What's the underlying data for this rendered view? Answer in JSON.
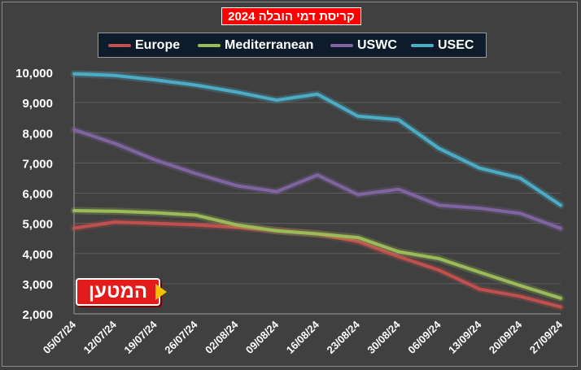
{
  "title": "קריסת דמי הובלה 2024",
  "logo_text": "המטען",
  "colors": {
    "background": "#404040",
    "Europe": "#c0504d",
    "Mediterranean": "#9bbb59",
    "USWC": "#8064a2",
    "USEC": "#4bacc6"
  },
  "chart_data": {
    "type": "line",
    "title": "קריסת דמי הובלה 2024",
    "xlabel": "",
    "ylabel": "",
    "ylim": [
      2000,
      10000
    ],
    "yticks": [
      "2,000",
      "3,000",
      "4,000",
      "5,000",
      "6,000",
      "7,000",
      "8,000",
      "9,000",
      "10,000"
    ],
    "categories": [
      "05/07/24",
      "12/07/24",
      "19/07/24",
      "26/07/24",
      "02/08/24",
      "09/08/24",
      "16/08/24",
      "23/08/24",
      "30/08/24",
      "06/09/24",
      "13/09/24",
      "20/09/24",
      "27/09/24"
    ],
    "grid": true,
    "legend_position": "top",
    "series": [
      {
        "name": "Europe",
        "values": [
          4840,
          5040,
          5000,
          4950,
          4870,
          4760,
          4650,
          4400,
          3900,
          3450,
          2820,
          2580,
          2230
        ]
      },
      {
        "name": "Mediterranean",
        "values": [
          5420,
          5400,
          5350,
          5270,
          4950,
          4750,
          4650,
          4530,
          4060,
          3830,
          3380,
          2940,
          2520
        ]
      },
      {
        "name": "USWC",
        "values": [
          8100,
          7650,
          7100,
          6650,
          6250,
          6050,
          6600,
          5950,
          6130,
          5600,
          5500,
          5330,
          4830
        ]
      },
      {
        "name": "USEC",
        "values": [
          9950,
          9900,
          9750,
          9580,
          9350,
          9080,
          9280,
          8550,
          8430,
          7480,
          6830,
          6500,
          5600
        ]
      }
    ]
  }
}
